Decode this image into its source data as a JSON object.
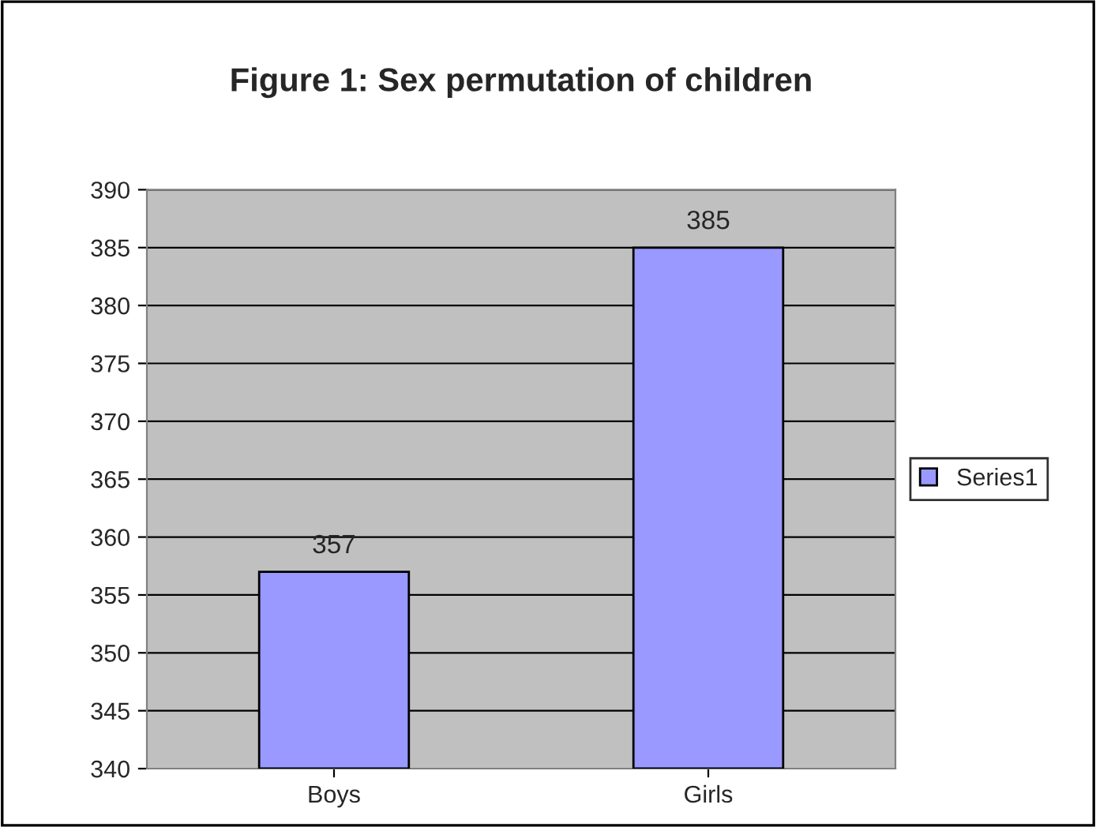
{
  "chart_data": {
    "type": "bar",
    "title": "Figure 1: Sex permutation of children",
    "categories": [
      "Boys",
      "Girls"
    ],
    "series": [
      {
        "name": "Series1",
        "color": "#9999ff",
        "values": [
          357,
          385
        ]
      }
    ],
    "ylim": [
      340,
      390
    ],
    "yticks": [
      340,
      345,
      350,
      355,
      360,
      365,
      370,
      375,
      380,
      385,
      390
    ],
    "grid": "y",
    "legend": "right",
    "data_labels": true
  }
}
